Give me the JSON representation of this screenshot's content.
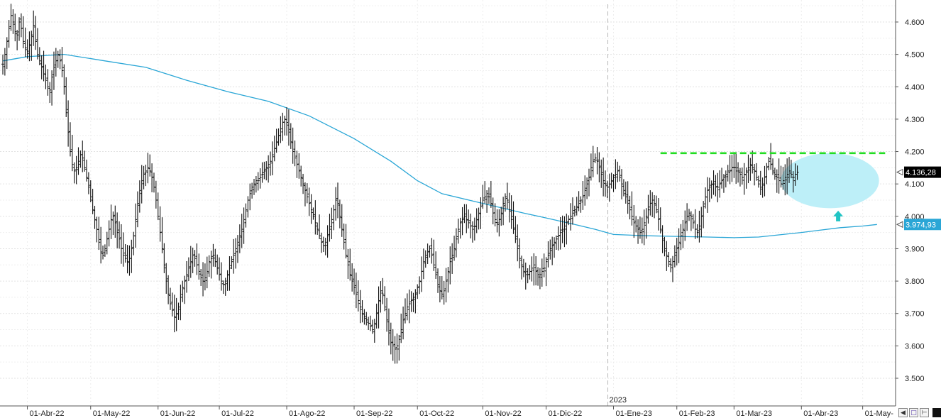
{
  "chart_data": {
    "type": "ohlc",
    "title": "",
    "xlabel": "",
    "ylabel": "",
    "ylim": [
      3480,
      4660
    ],
    "y_ticks": [
      "3.500",
      "3.600",
      "3.700",
      "3.800",
      "3.900",
      "4.000",
      "4.100",
      "4.200",
      "4.300",
      "4.400",
      "4.500",
      "4.600"
    ],
    "y_tick_values": [
      3500,
      3600,
      3700,
      3800,
      3900,
      4000,
      4100,
      4200,
      4300,
      4400,
      4500,
      4600
    ],
    "x_ticks": [
      "01-Abr-22",
      "01-May-22",
      "01-Jun-22",
      "01-Jul-22",
      "01-Ago-22",
      "01-Sep-22",
      "01-Oct-22",
      "01-Nov-22",
      "01-Dic-22",
      "01-Ene-23",
      "01-Feb-23",
      "01-Mar-23",
      "01-Abr-23",
      "01-May-"
    ],
    "x_tick_index": [
      12,
      43,
      76,
      106,
      139,
      172,
      203,
      235,
      266,
      299,
      330,
      358,
      391,
      421
    ],
    "year_marker": {
      "label": "2023",
      "index": 299
    },
    "grid": true,
    "legend": "none",
    "price_series": {
      "name": "",
      "color": "#111111",
      "closes": [
        4470,
        4500,
        4540,
        4580,
        4620,
        4600,
        4570,
        4560,
        4600,
        4580,
        4540,
        4520,
        4510,
        4530,
        4560,
        4590,
        4540,
        4500,
        4480,
        4460,
        4440,
        4420,
        4400,
        4390,
        4430,
        4460,
        4480,
        4500,
        4480,
        4450,
        4400,
        4320,
        4260,
        4200,
        4160,
        4140,
        4150,
        4170,
        4190,
        4180,
        4150,
        4120,
        4090,
        4060,
        4020,
        3990,
        3960,
        3920,
        3890,
        3880,
        3900,
        3930,
        3960,
        3990,
        4000,
        3980,
        3950,
        3930,
        3900,
        3880,
        3870,
        3860,
        3870,
        3900,
        3940,
        3990,
        4040,
        4080,
        4110,
        4130,
        4140,
        4150,
        4140,
        4120,
        4090,
        4050,
        4000,
        3950,
        3900,
        3850,
        3800,
        3760,
        3730,
        3710,
        3690,
        3700,
        3720,
        3750,
        3780,
        3800,
        3820,
        3840,
        3860,
        3880,
        3870,
        3850,
        3830,
        3810,
        3800,
        3810,
        3830,
        3860,
        3870,
        3880,
        3860,
        3840,
        3820,
        3800,
        3790,
        3800,
        3820,
        3840,
        3860,
        3880,
        3900,
        3920,
        3940,
        3960,
        3990,
        4020,
        4050,
        4070,
        4090,
        4100,
        4110,
        4110,
        4120,
        4130,
        4140,
        4150,
        4160,
        4170,
        4190,
        4210,
        4230,
        4250,
        4270,
        4290,
        4300,
        4290,
        4260,
        4230,
        4200,
        4180,
        4160,
        4140,
        4120,
        4100,
        4080,
        4060,
        4040,
        4020,
        4000,
        3980,
        3960,
        3940,
        3920,
        3910,
        3920,
        3940,
        3960,
        3990,
        4020,
        4050,
        4040,
        4000,
        3960,
        3920,
        3880,
        3850,
        3820,
        3800,
        3780,
        3760,
        3740,
        3720,
        3700,
        3690,
        3680,
        3670,
        3660,
        3650,
        3670,
        3700,
        3740,
        3770,
        3760,
        3720,
        3680,
        3640,
        3610,
        3600,
        3590,
        3600,
        3620,
        3650,
        3680,
        3700,
        3720,
        3730,
        3740,
        3750,
        3760,
        3780,
        3800,
        3830,
        3860,
        3880,
        3890,
        3900,
        3880,
        3850,
        3820,
        3790,
        3770,
        3760,
        3770,
        3800,
        3830,
        3860,
        3880,
        3900,
        3930,
        3960,
        3980,
        3990,
        4000,
        3990,
        3980,
        3970,
        3960,
        3970,
        3990,
        4010,
        4030,
        4050,
        4060,
        4070,
        4060,
        4040,
        4010,
        3990,
        3980,
        3990,
        4010,
        4040,
        4060,
        4050,
        4020,
        3990,
        3960,
        3930,
        3900,
        3870,
        3850,
        3830,
        3820,
        3820,
        3830,
        3840,
        3850,
        3830,
        3820,
        3820,
        3830,
        3840,
        3860,
        3880,
        3900,
        3910,
        3920,
        3930,
        3940,
        3950,
        3960,
        3970,
        3980,
        3990,
        4000,
        4010,
        4020,
        4030,
        4040,
        4050,
        4060,
        4080,
        4100,
        4120,
        4150,
        4170,
        4180,
        4170,
        4150,
        4130,
        4110,
        4100,
        4090,
        4100,
        4110,
        4120,
        4130,
        4140,
        4120,
        4100,
        4080,
        4060,
        4040,
        4020,
        4000,
        3980,
        3970,
        3960,
        3950,
        3960,
        3980,
        4000,
        4020,
        4040,
        4050,
        4040,
        4020,
        3990,
        3960,
        3930,
        3900,
        3880,
        3860,
        3850,
        3860,
        3880,
        3900,
        3920,
        3940,
        3960,
        3980,
        4000,
        4010,
        4000,
        3980,
        3960,
        3950,
        3970,
        4000,
        4030,
        4060,
        4080,
        4090,
        4100,
        4100,
        4090,
        4090,
        4100,
        4110,
        4120,
        4130,
        4140,
        4140,
        4150,
        4150,
        4140,
        4140,
        4130,
        4120,
        4130,
        4140,
        4150,
        4160,
        4150,
        4140,
        4120,
        4100,
        4090,
        4100,
        4120,
        4150,
        4170,
        4160,
        4140,
        4130,
        4120,
        4110,
        4100,
        4110,
        4120,
        4130,
        4140,
        4130,
        4120,
        4130,
        4136
      ]
    },
    "moving_average": {
      "name": "",
      "color": "#2aa6d6",
      "points": [
        [
          0,
          4480
        ],
        [
          12,
          4493
        ],
        [
          30,
          4500
        ],
        [
          50,
          4480
        ],
        [
          70,
          4460
        ],
        [
          90,
          4420
        ],
        [
          110,
          4385
        ],
        [
          130,
          4355
        ],
        [
          150,
          4310
        ],
        [
          172,
          4240
        ],
        [
          190,
          4170
        ],
        [
          203,
          4110
        ],
        [
          215,
          4070
        ],
        [
          235,
          4040
        ],
        [
          255,
          4010
        ],
        [
          266,
          3995
        ],
        [
          280,
          3975
        ],
        [
          290,
          3960
        ],
        [
          299,
          3944
        ],
        [
          315,
          3940
        ],
        [
          330,
          3938
        ],
        [
          345,
          3936
        ],
        [
          358,
          3934
        ],
        [
          370,
          3936
        ],
        [
          391,
          3950
        ],
        [
          410,
          3965
        ],
        [
          421,
          3970
        ],
        [
          428,
          3974.93
        ]
      ]
    },
    "annotations": {
      "resistance": {
        "value": 4195,
        "from_index": 322,
        "to_index": 432,
        "color": "#22dd22",
        "style": "dashed"
      },
      "zone": {
        "x_index": [
          381,
          429
        ],
        "y_range": [
          4025,
          4195
        ],
        "color": "#bdeff8"
      },
      "arrow": {
        "index": 409,
        "value": 4000,
        "color": "#22c4c4",
        "direction": "up"
      }
    },
    "last_price": {
      "label": "4.136,28",
      "value": 4136.28,
      "bg": "#000000",
      "fg": "#ffffff"
    },
    "ma_value": {
      "label": "3.974,93",
      "value": 3974.93,
      "bg": "#2aa6d6",
      "fg": "#ffffff"
    }
  }
}
